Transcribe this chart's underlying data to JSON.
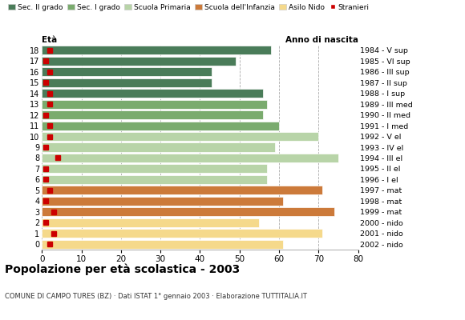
{
  "ages": [
    18,
    17,
    16,
    15,
    14,
    13,
    12,
    11,
    10,
    9,
    8,
    7,
    6,
    5,
    4,
    3,
    2,
    1,
    0
  ],
  "right_labels": [
    "1984 - V sup",
    "1985 - VI sup",
    "1986 - III sup",
    "1987 - II sup",
    "1988 - I sup",
    "1989 - III med",
    "1990 - II med",
    "1991 - I med",
    "1992 - V el",
    "1993 - IV el",
    "1994 - III el",
    "1995 - II el",
    "1996 - I el",
    "1997 - mat",
    "1998 - mat",
    "1999 - mat",
    "2000 - nido",
    "2001 - nido",
    "2002 - nido"
  ],
  "bar_values": [
    58,
    49,
    43,
    43,
    56,
    57,
    56,
    60,
    70,
    59,
    75,
    57,
    57,
    71,
    61,
    74,
    55,
    71,
    61
  ],
  "bar_colors": [
    "#4a7c59",
    "#4a7c59",
    "#4a7c59",
    "#4a7c59",
    "#4a7c59",
    "#7aab6e",
    "#7aab6e",
    "#7aab6e",
    "#b8d4a8",
    "#b8d4a8",
    "#b8d4a8",
    "#b8d4a8",
    "#b8d4a8",
    "#cc7a3a",
    "#cc7a3a",
    "#cc7a3a",
    "#f5d98b",
    "#f5d98b",
    "#f5d98b"
  ],
  "stranieri_values": [
    2,
    1,
    2,
    1,
    2,
    2,
    1,
    2,
    2,
    1,
    4,
    1,
    1,
    2,
    1,
    3,
    1,
    3,
    2
  ],
  "legend_labels": [
    "Sec. II grado",
    "Sec. I grado",
    "Scuola Primaria",
    "Scuola dell'Infanzia",
    "Asilo Nido",
    "Stranieri"
  ],
  "legend_colors": [
    "#4a7c59",
    "#7aab6e",
    "#b8d4a8",
    "#cc7a3a",
    "#f5d98b",
    "#cc0000"
  ],
  "title": "Popolazione per età scolastica - 2003",
  "subtitle": "COMUNE DI CAMPO TURES (BZ) · Dati ISTAT 1° gennaio 2003 · Elaborazione TUTTITALIA.IT",
  "xlabel_left": "Età",
  "xlabel_right": "Anno di nascita",
  "xlim": [
    0,
    80
  ],
  "xticks": [
    0,
    10,
    20,
    30,
    40,
    50,
    60,
    70,
    80
  ],
  "background_color": "#ffffff",
  "bar_height": 0.82,
  "stranieri_color": "#cc0000",
  "stranieri_size": 4
}
